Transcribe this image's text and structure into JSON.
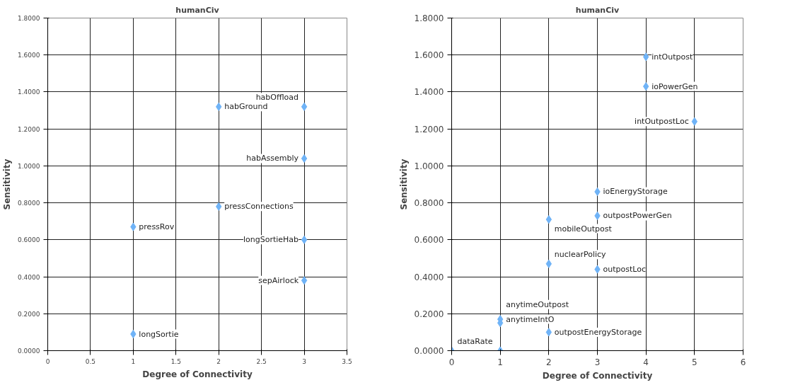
{
  "chart_data": [
    {
      "type": "scatter",
      "title": "humanCiv",
      "xlabel": "Degree of Connectivity",
      "ylabel": "Sensitivity",
      "marker": "diamond",
      "grid": true,
      "xlim": [
        0,
        3.5
      ],
      "xticks": [
        0,
        0.5,
        1,
        1.5,
        2,
        2.5,
        3,
        3.5
      ],
      "ylim": [
        0,
        1.8
      ],
      "yticks": [
        {
          "value": 0,
          "label": "0.0000"
        },
        {
          "value": 0.2,
          "label": "0.2000"
        },
        {
          "value": 0.4,
          "label": "0.4000"
        },
        {
          "value": 0.6,
          "label": "0.6000"
        },
        {
          "value": 0.8,
          "label": "0.8000"
        },
        {
          "value": 1.0,
          "label": "1.0000"
        },
        {
          "value": 1.2,
          "label": "1.2000"
        },
        {
          "value": 1.4,
          "label": "1.4000"
        },
        {
          "value": 1.6,
          "label": "1.6000"
        },
        {
          "value": 1.8,
          "label": "1.8000"
        }
      ],
      "series": [
        {
          "color": "#6fb3f7",
          "x": [
            2,
            3,
            3,
            2,
            1,
            3,
            3,
            1
          ],
          "values": [
            1.32,
            1.32,
            1.04,
            0.78,
            0.67,
            0.6,
            0.38,
            0.09
          ]
        }
      ],
      "annotations": [
        {
          "text": "habGround",
          "x": 2,
          "y": 1.32
        },
        {
          "text": "habOffload",
          "x": 3,
          "y": 1.32
        },
        {
          "text": "habAssembly",
          "x": 3,
          "y": 1.04
        },
        {
          "text": "pressConnections",
          "x": 2,
          "y": 0.78
        },
        {
          "text": "pressRov",
          "x": 1,
          "y": 0.67
        },
        {
          "text": "longSortieHab",
          "x": 3,
          "y": 0.6
        },
        {
          "text": "sepAirlock",
          "x": 3,
          "y": 0.38
        },
        {
          "text": "longSortie",
          "x": 1,
          "y": 0.09
        }
      ]
    },
    {
      "type": "scatter",
      "title": "humanCiv",
      "xlabel": "Degree of Connectivity",
      "ylabel": "Sensitivity",
      "marker": "diamond",
      "grid": true,
      "xlim": [
        0,
        6
      ],
      "xticks": [
        0,
        1,
        2,
        3,
        4,
        5,
        6
      ],
      "ylim": [
        0,
        1.8
      ],
      "yticks": [
        {
          "value": 0,
          "label": "0.0000"
        },
        {
          "value": 0.2,
          "label": "0.2000"
        },
        {
          "value": 0.4,
          "label": "0.4000"
        },
        {
          "value": 0.6,
          "label": "0.6000"
        },
        {
          "value": 0.8,
          "label": "0.8000"
        },
        {
          "value": 1.0,
          "label": "1.0000"
        },
        {
          "value": 1.2,
          "label": "1.2000"
        },
        {
          "value": 1.4,
          "label": "1.4000"
        },
        {
          "value": 1.6,
          "label": "1.6000"
        },
        {
          "value": 1.8,
          "label": "1.8000"
        }
      ],
      "series": [
        {
          "color": "#6fb3f7",
          "x": [
            4,
            4,
            5,
            3,
            3,
            2,
            2,
            3,
            1,
            1,
            2,
            0,
            1
          ],
          "values": [
            1.59,
            1.43,
            1.24,
            0.86,
            0.73,
            0.71,
            0.47,
            0.44,
            0.17,
            0.15,
            0.1,
            0,
            0
          ]
        }
      ],
      "annotations": [
        {
          "text": "intOutpost",
          "x": 4,
          "y": 1.59
        },
        {
          "text": "ioPowerGen",
          "x": 4,
          "y": 1.43
        },
        {
          "text": "intOutpostLoc",
          "x": 5,
          "y": 1.24
        },
        {
          "text": "ioEnergyStorage",
          "x": 3,
          "y": 0.86
        },
        {
          "text": "outpostPowerGen",
          "x": 3,
          "y": 0.73
        },
        {
          "text": "mobileOutpost",
          "x": 2,
          "y": 0.71
        },
        {
          "text": "nuclearPolicy",
          "x": 2,
          "y": 0.47
        },
        {
          "text": "outpostLoc",
          "x": 3,
          "y": 0.44
        },
        {
          "text": "anytimeIntO",
          "x": 1,
          "y": 0.17
        },
        {
          "text": "anytimeOutpost",
          "x": 1,
          "y": 0.15
        },
        {
          "text": "outpostEnergyStorage",
          "x": 2,
          "y": 0.1
        },
        {
          "text": "dataRate",
          "x": 0,
          "y": 0
        }
      ]
    }
  ]
}
